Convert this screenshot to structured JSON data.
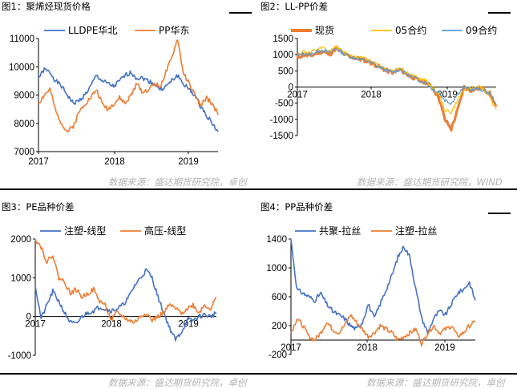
{
  "source_top": "数据来源：盛达期货研究院，卓创",
  "source_top_right": "数据来源：盛达期货研究院，WIND",
  "source_bottom_left": "数据来源：盛达期货研究院，卓创",
  "source_bottom_right": "数据来源：盛达期货研究院，卓创",
  "chart_data": [
    {
      "type": "line",
      "title": "图1：聚烯烃现货价格",
      "x_ticks": [
        "2017",
        "2018",
        "2019"
      ],
      "ylim": [
        7000,
        11000
      ],
      "y_ticks": [
        7000,
        8000,
        9000,
        10000,
        11000
      ],
      "legend": "top",
      "series": [
        {
          "name": "LLDPE华北",
          "color": "#4472c4",
          "values": [
            9600,
            9900,
            9800,
            9500,
            9300,
            9000,
            8700,
            8800,
            9000,
            9300,
            9700,
            9500,
            9400,
            9300,
            9500,
            9700,
            9800,
            9600,
            9600,
            9500,
            9400,
            9200,
            9300,
            9500,
            9700,
            9400,
            9200,
            9000,
            8600,
            8300,
            8000,
            7700
          ]
        },
        {
          "name": "PP华东",
          "color": "#ed7d31",
          "values": [
            8700,
            9000,
            9200,
            8400,
            8000,
            7700,
            7900,
            8400,
            8700,
            8900,
            9200,
            8700,
            8500,
            8700,
            8900,
            8700,
            9000,
            9400,
            9100,
            9200,
            9400,
            9300,
            9800,
            10300,
            11000,
            9800,
            9400,
            9000,
            8600,
            8900,
            8700,
            8300
          ]
        }
      ]
    },
    {
      "type": "line",
      "title": "图2：LL-PP价差",
      "x_ticks": [
        "2017",
        "2018",
        "2019"
      ],
      "ylim": [
        -1500,
        1500
      ],
      "y_ticks": [
        -1500,
        -1000,
        -500,
        0,
        500,
        1000,
        1500
      ],
      "legend": "top",
      "series": [
        {
          "name": "现货",
          "color": "#ed7d31",
          "values": [
            900,
            1000,
            950,
            1050,
            1100,
            1000,
            1200,
            1050,
            950,
            900,
            850,
            800,
            700,
            600,
            500,
            450,
            550,
            400,
            300,
            200,
            150,
            0,
            -300,
            -1000,
            -1300,
            -700,
            0,
            -100,
            -50,
            -50,
            -200,
            -600
          ]
        },
        {
          "name": "05合约",
          "color": "#ffc000",
          "values": [
            1000,
            1100,
            1050,
            1150,
            1200,
            1100,
            1250,
            1100,
            1000,
            950,
            900,
            850,
            750,
            650,
            550,
            500,
            600,
            450,
            350,
            250,
            200,
            0,
            -200,
            -700,
            -800,
            -400,
            -50,
            -50,
            0,
            -50,
            -300,
            -700
          ]
        },
        {
          "name": "09合约",
          "color": "#5b9bd5",
          "values": [
            950,
            1050,
            1000,
            1100,
            1150,
            1050,
            1200,
            1050,
            950,
            900,
            850,
            800,
            700,
            600,
            500,
            450,
            550,
            400,
            300,
            200,
            150,
            -50,
            -150,
            -400,
            -500,
            -200,
            0,
            -100,
            -50,
            -100,
            -200,
            -500
          ]
        }
      ]
    },
    {
      "type": "line",
      "title": "图3：PE品种价差",
      "x_ticks": [
        "2017",
        "2018",
        "2019"
      ],
      "ylim": [
        -1000,
        2000
      ],
      "y_ticks": [
        -1000,
        0,
        1000,
        2000
      ],
      "legend": "top",
      "series": [
        {
          "name": "注塑-线型",
          "color": "#4472c4",
          "values": [
            800,
            -50,
            300,
            650,
            400,
            100,
            -150,
            -200,
            0,
            100,
            150,
            250,
            200,
            150,
            200,
            300,
            500,
            800,
            1000,
            1200,
            1000,
            500,
            100,
            -300,
            -600,
            -400,
            -100,
            -100,
            0,
            50,
            0,
            100
          ]
        },
        {
          "name": "高压-线型",
          "color": "#ed7d31",
          "values": [
            2000,
            1800,
            1400,
            1600,
            1000,
            900,
            600,
            700,
            500,
            600,
            700,
            400,
            300,
            -100,
            100,
            0,
            -100,
            -150,
            0,
            100,
            -100,
            0,
            100,
            300,
            200,
            100,
            200,
            300,
            100,
            300,
            200,
            500
          ]
        }
      ]
    },
    {
      "type": "line",
      "title": "图4：PP品种价差",
      "x_ticks": [
        "2017",
        "2018",
        "2019"
      ],
      "ylim": [
        -200,
        1400
      ],
      "y_ticks": [
        -200,
        200,
        600,
        1000,
        1400
      ],
      "legend": "top",
      "series": [
        {
          "name": "共聚-拉丝",
          "color": "#4472c4",
          "values": [
            1400,
            700,
            650,
            600,
            550,
            650,
            500,
            400,
            350,
            300,
            200,
            150,
            250,
            500,
            300,
            500,
            700,
            900,
            1150,
            1300,
            1150,
            700,
            300,
            100,
            300,
            400,
            350,
            500,
            650,
            700,
            800,
            550
          ]
        },
        {
          "name": "注塑-拉丝",
          "color": "#ed7d31",
          "values": [
            100,
            300,
            200,
            50,
            0,
            100,
            250,
            150,
            100,
            200,
            350,
            250,
            150,
            50,
            100,
            200,
            150,
            100,
            0,
            50,
            100,
            150,
            -50,
            100,
            200,
            100,
            150,
            200,
            50,
            100,
            200,
            250
          ]
        }
      ]
    }
  ]
}
